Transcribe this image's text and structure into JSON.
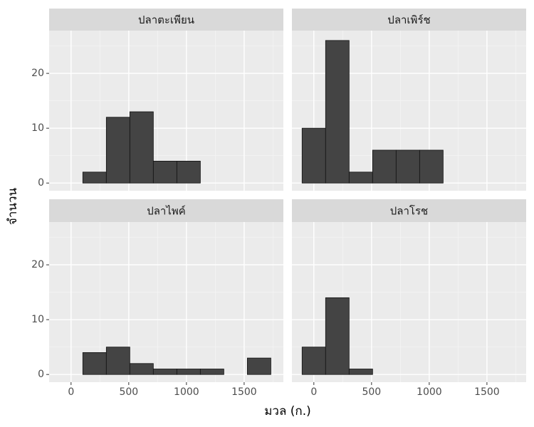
{
  "chart_data": {
    "type": "histogram",
    "xlabel": "มวล (ก.)",
    "ylabel": "จำนวน",
    "bins": [
      -101.9,
      101.9,
      305.6,
      509.3,
      713,
      916.7,
      1120.4,
      1324.1,
      1527.8,
      1731.5
    ],
    "panels": [
      {
        "title": "ปลาตะเพียน",
        "values": [
          0,
          2,
          12,
          13,
          4,
          4,
          0,
          0,
          0
        ]
      },
      {
        "title": "ปลาเพิร์ช",
        "values": [
          10,
          26,
          2,
          6,
          6,
          6,
          0,
          0,
          0
        ]
      },
      {
        "title": "ปลาไพค์",
        "values": [
          0,
          4,
          5,
          2,
          1,
          1,
          1,
          0,
          3
        ]
      },
      {
        "title": "ปลาโรช",
        "values": [
          5,
          14,
          1,
          0,
          0,
          0,
          0,
          0,
          0
        ]
      }
    ],
    "color": "#444444",
    "xlim": [
      -190,
      1840
    ],
    "xticks": [
      0,
      500,
      1000,
      1500
    ],
    "xminor": [
      250,
      750,
      1250,
      1750
    ],
    "ylim": [
      -1.4,
      27.8
    ],
    "yticks": [
      0,
      10,
      20
    ],
    "yminor": [
      5,
      15,
      25
    ],
    "grid": true
  }
}
